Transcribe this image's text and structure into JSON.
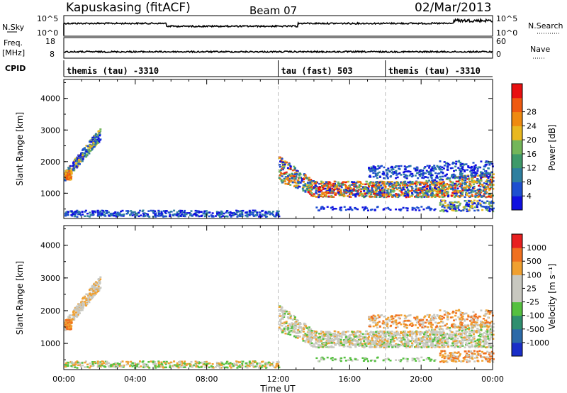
{
  "header": {
    "station": "Kapuskasing (fitACF)",
    "beam": "Beam 07",
    "date": "02/Mar/2013"
  },
  "nsky": {
    "label": "N.Sky",
    "tick_top": "10^5",
    "tick_bottom": "10^0",
    "right_label": "N.Search",
    "right_tick_top": "10^5",
    "right_tick_bottom": "10^0"
  },
  "freq": {
    "label_line1": "Freq.",
    "label_line2": "[MHz]",
    "tick_top": "18",
    "tick_bottom": "8",
    "right_label": "Nave",
    "right_tick_top": "60",
    "right_tick_bottom": "0"
  },
  "cpid": {
    "label": "CPID",
    "modes": [
      {
        "name": "themis (tau) -3310",
        "start_h": 0
      },
      {
        "name": "tau (fast) 503",
        "start_h": 12
      },
      {
        "name": "themis (tau) -3310",
        "start_h": 18
      }
    ]
  },
  "chart_data": [
    {
      "type": "heatmap",
      "panel": "power",
      "ylabel": "Slant Range [km]",
      "ylim": [
        200,
        4600
      ],
      "yticks": [
        1000,
        2000,
        3000,
        4000
      ],
      "xlim_hours": [
        0,
        24
      ],
      "colorbar": {
        "label": "Power [dB]",
        "ticks": [
          "4",
          "8",
          "12",
          "16",
          "20",
          "24",
          "28"
        ],
        "colors": [
          "#1010e0",
          "#1e4fd0",
          "#2e7f9f",
          "#3f9a6a",
          "#74b65a",
          "#e9b820",
          "#ef8a10",
          "#ef5a10",
          "#e81010"
        ]
      }
    },
    {
      "type": "heatmap",
      "panel": "velocity",
      "ylabel": "Slant Range [km]",
      "ylim": [
        200,
        4600
      ],
      "yticks": [
        1000,
        2000,
        3000,
        4000
      ],
      "xlim_hours": [
        0,
        24
      ],
      "colorbar": {
        "label": "Velocity [m s⁻¹]",
        "ticks": [
          "1000",
          "500",
          "100",
          "25",
          "-25",
          "-100",
          "-500",
          "-1000"
        ],
        "colors": [
          "#1a2ec8",
          "#2c6aa8",
          "#2f8f6f",
          "#55c040",
          "#c8c8c0",
          "#c8c8c0",
          "#f0a030",
          "#f07020",
          "#e82020"
        ]
      }
    }
  ],
  "xaxis": {
    "label": "Time UT",
    "ticks": [
      "00:00",
      "04:00",
      "08:00",
      "12:00",
      "16:00",
      "20:00",
      "00:00"
    ]
  }
}
